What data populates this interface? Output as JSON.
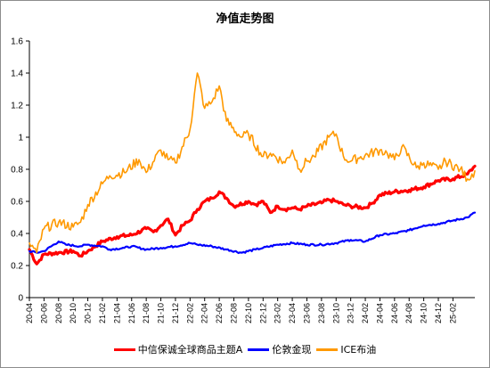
{
  "chart_data": {
    "type": "line",
    "title": "净值走势图",
    "xlabel": "",
    "ylabel": "",
    "ylim": [
      0,
      1.6
    ],
    "yticks": [
      "0",
      "0.2",
      "0.4",
      "0.6",
      "0.8",
      "1",
      "1.2",
      "1.4",
      "1.6"
    ],
    "ytick_values": [
      0,
      0.2,
      0.4,
      0.6,
      0.8,
      1.0,
      1.2,
      1.4,
      1.6
    ],
    "xticks": [
      "20-04",
      "20-06",
      "20-08",
      "20-10",
      "20-12",
      "21-02",
      "21-04",
      "21-06",
      "21-08",
      "21-10",
      "21-12",
      "22-02",
      "22-04",
      "22-06",
      "22-08",
      "22-10",
      "22-12",
      "23-02",
      "23-04",
      "23-06",
      "23-08",
      "23-10",
      "23-12",
      "24-02",
      "24-04",
      "24-06",
      "24-08",
      "24-10",
      "24-12",
      "25-02"
    ],
    "x_range": [
      "2020-04",
      "2025-05"
    ],
    "grid": false,
    "legend_position": "bottom",
    "series": [
      {
        "name": "中信保诚全球商品主题A",
        "color": "#ff0000",
        "x": [
          "2020-04",
          "2020-05",
          "2020-06",
          "2020-08",
          "2020-10",
          "2020-11",
          "2020-12",
          "2021-02",
          "2021-04",
          "2021-06",
          "2021-08",
          "2021-09",
          "2021-10",
          "2021-11",
          "2021-12",
          "2022-01",
          "2022-02",
          "2022-03",
          "2022-04",
          "2022-05",
          "2022-06",
          "2022-07",
          "2022-08",
          "2022-10",
          "2022-11",
          "2022-12",
          "2023-01",
          "2023-02",
          "2023-03",
          "2023-04",
          "2023-05",
          "2023-06",
          "2023-08",
          "2023-09",
          "2023-10",
          "2023-11",
          "2023-12",
          "2024-02",
          "2024-03",
          "2024-04",
          "2024-06",
          "2024-08",
          "2024-10",
          "2024-12",
          "2025-02",
          "2025-04",
          "2025-05"
        ],
        "values": [
          0.3,
          0.21,
          0.27,
          0.28,
          0.29,
          0.26,
          0.29,
          0.35,
          0.38,
          0.39,
          0.43,
          0.41,
          0.45,
          0.49,
          0.39,
          0.45,
          0.48,
          0.55,
          0.6,
          0.62,
          0.66,
          0.62,
          0.57,
          0.6,
          0.58,
          0.6,
          0.53,
          0.57,
          0.55,
          0.56,
          0.55,
          0.57,
          0.59,
          0.61,
          0.6,
          0.58,
          0.57,
          0.56,
          0.59,
          0.64,
          0.66,
          0.67,
          0.69,
          0.73,
          0.74,
          0.77,
          0.82
        ]
      },
      {
        "name": "伦敦金现",
        "color": "#0000ff",
        "x": [
          "2020-04",
          "2020-05",
          "2020-06",
          "2020-08",
          "2020-09",
          "2020-11",
          "2020-12",
          "2021-02",
          "2021-03",
          "2021-05",
          "2021-06",
          "2021-08",
          "2021-10",
          "2021-12",
          "2022-02",
          "2022-03",
          "2022-05",
          "2022-07",
          "2022-09",
          "2022-11",
          "2022-12",
          "2023-02",
          "2023-04",
          "2023-06",
          "2023-08",
          "2023-10",
          "2023-12",
          "2024-02",
          "2024-04",
          "2024-06",
          "2024-08",
          "2024-10",
          "2024-12",
          "2025-02",
          "2025-04",
          "2025-05"
        ],
        "values": [
          0.29,
          0.28,
          0.29,
          0.35,
          0.33,
          0.32,
          0.33,
          0.32,
          0.3,
          0.31,
          0.32,
          0.3,
          0.31,
          0.32,
          0.34,
          0.33,
          0.32,
          0.3,
          0.28,
          0.3,
          0.31,
          0.33,
          0.34,
          0.33,
          0.33,
          0.34,
          0.36,
          0.35,
          0.39,
          0.4,
          0.42,
          0.45,
          0.46,
          0.48,
          0.5,
          0.53
        ]
      },
      {
        "name": "ICE布油",
        "color": "#ff9900",
        "x": [
          "2020-04",
          "2020-05",
          "2020-06",
          "2020-08",
          "2020-10",
          "2020-11",
          "2020-12",
          "2021-02",
          "2021-03",
          "2021-05",
          "2021-07",
          "2021-08",
          "2021-10",
          "2021-11",
          "2021-12",
          "2022-02",
          "2022-03",
          "2022-04",
          "2022-05",
          "2022-06",
          "2022-07",
          "2022-09",
          "2022-10",
          "2022-12",
          "2023-01",
          "2023-03",
          "2023-04",
          "2023-05",
          "2023-06",
          "2023-07",
          "2023-09",
          "2023-10",
          "2023-11",
          "2023-12",
          "2024-01",
          "2024-04",
          "2024-05",
          "2024-06",
          "2024-07",
          "2024-09",
          "2024-10",
          "2024-12",
          "2025-01",
          "2025-03",
          "2025-04",
          "2025-05"
        ],
        "values": [
          0.34,
          0.28,
          0.43,
          0.47,
          0.44,
          0.47,
          0.58,
          0.71,
          0.76,
          0.78,
          0.86,
          0.78,
          0.92,
          0.86,
          0.84,
          1.05,
          1.4,
          1.18,
          1.22,
          1.32,
          1.1,
          1.0,
          1.02,
          0.88,
          0.9,
          0.84,
          0.92,
          0.8,
          0.85,
          0.88,
          1.0,
          1.02,
          0.88,
          0.85,
          0.87,
          0.92,
          0.9,
          0.86,
          0.94,
          0.81,
          0.84,
          0.8,
          0.85,
          0.8,
          0.74,
          0.79
        ]
      }
    ]
  }
}
